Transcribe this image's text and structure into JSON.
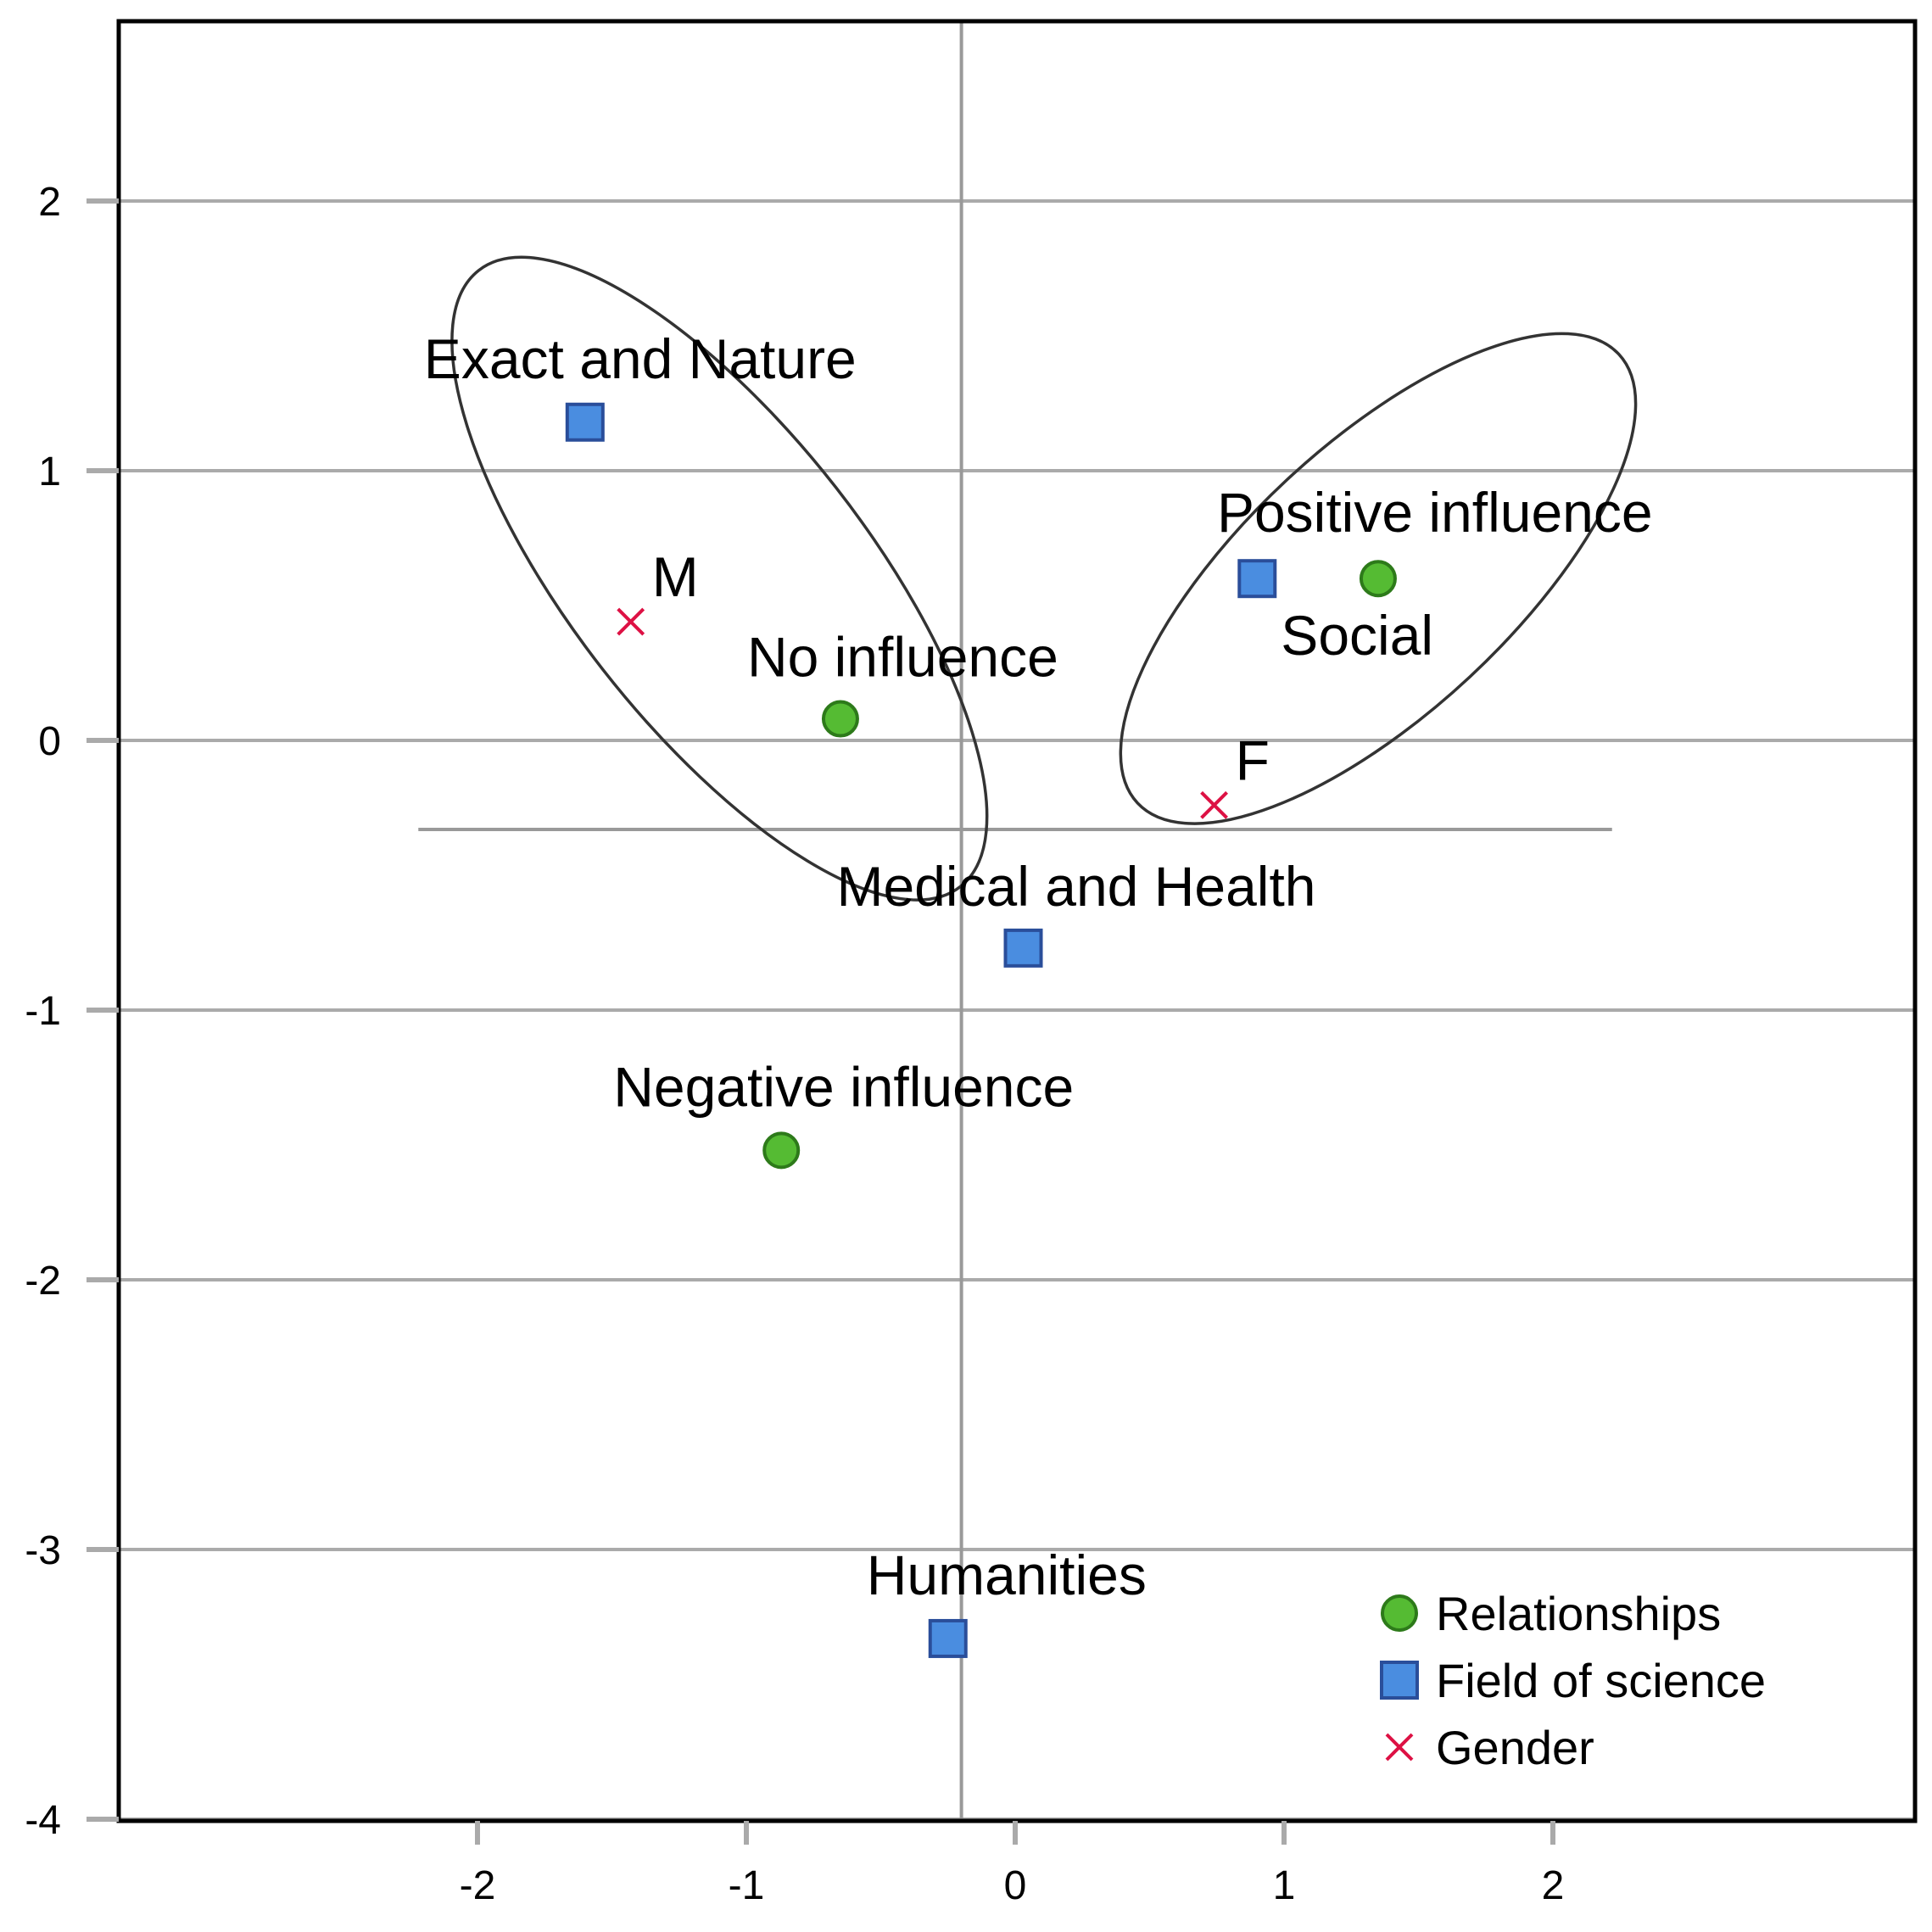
{
  "chart_data": {
    "type": "scatter",
    "title": "",
    "xlabel": "",
    "ylabel": "",
    "xlim": [
      -3.33,
      3.33
    ],
    "ylim": [
      -4,
      2.67
    ],
    "x_ticks": [
      {
        "value": -2,
        "label": "-2"
      },
      {
        "value": -1,
        "label": "-1"
      },
      {
        "value": 0,
        "label": "0"
      },
      {
        "value": 1,
        "label": "1"
      },
      {
        "value": 2,
        "label": "2"
      }
    ],
    "y_ticks": [
      {
        "value": 2,
        "label": "2"
      },
      {
        "value": 1,
        "label": "1"
      },
      {
        "value": 0,
        "label": "0"
      },
      {
        "value": -1,
        "label": "-1"
      },
      {
        "value": -2,
        "label": "-2"
      },
      {
        "value": -3,
        "label": "-3"
      },
      {
        "value": -4,
        "label": "-4"
      }
    ],
    "grid": "horizontal",
    "reference_lines": {
      "vertical_x": -0.2,
      "horizontal_y": -0.33,
      "horizontal_from": -2.22,
      "horizontal_to": 2.22
    },
    "series": [
      {
        "name": "Relationships",
        "marker": "circle",
        "color": "#55bb33",
        "edge_color": "#2d7a1a",
        "points": [
          {
            "label": "Positive influence",
            "x": 1.35,
            "y": 0.6
          },
          {
            "label": "No influence",
            "x": -0.65,
            "y": 0.08
          },
          {
            "label": "Negative influence",
            "x": -0.87,
            "y": -1.52
          }
        ]
      },
      {
        "name": "Field of science",
        "marker": "square",
        "color": "#4a8de0",
        "edge_color": "#2a4e9a",
        "points": [
          {
            "label": "Exact and Nature",
            "x": -1.6,
            "y": 1.18
          },
          {
            "label": "Social",
            "x": 0.9,
            "y": 0.6
          },
          {
            "label": "Medical and Health",
            "x": 0.03,
            "y": -0.77
          },
          {
            "label": "Humanities",
            "x": -0.25,
            "y": -3.33
          }
        ]
      },
      {
        "name": "Gender",
        "marker": "x",
        "color": "#dd1144",
        "points": [
          {
            "label": "M",
            "x": -1.43,
            "y": 0.44
          },
          {
            "label": "F",
            "x": 0.74,
            "y": -0.24
          }
        ]
      }
    ],
    "ellipses": [
      {
        "group": "Exact and Nature / M / No influence",
        "cx": -1.1,
        "cy": 0.6,
        "rx": 0.55,
        "ry": 1.45,
        "angle_deg": -38
      },
      {
        "group": "Positive influence / Social / F",
        "cx": 1.35,
        "cy": 0.6,
        "rx": 0.5,
        "ry": 1.22,
        "angle_deg": 47
      }
    ],
    "legend": {
      "position": "bottom-right",
      "entries": [
        {
          "label": "Relationships",
          "marker": "circle"
        },
        {
          "label": "Field of science",
          "marker": "square"
        },
        {
          "label": "Gender",
          "marker": "x"
        }
      ]
    }
  }
}
